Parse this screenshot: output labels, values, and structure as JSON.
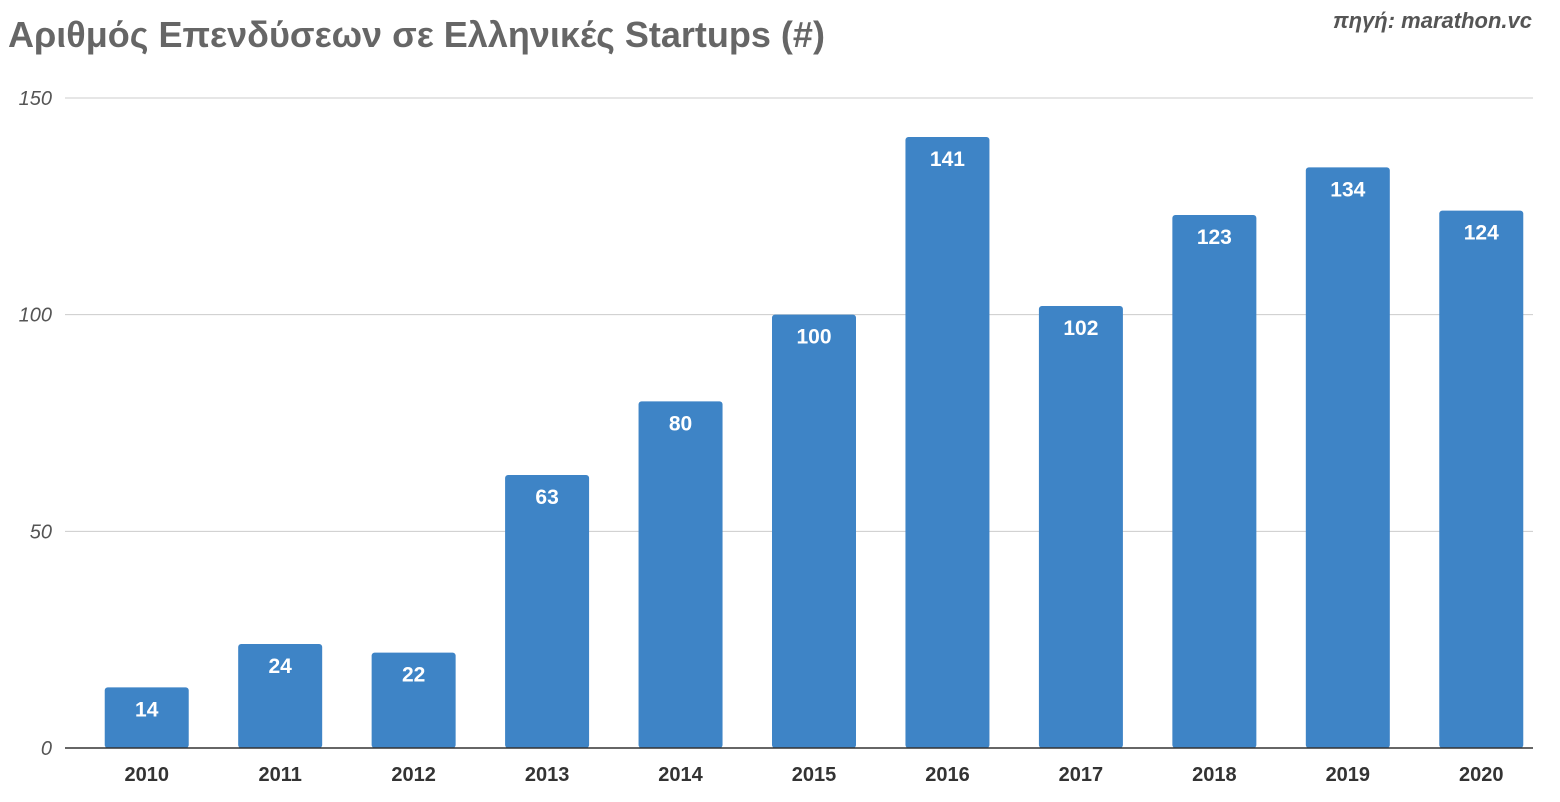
{
  "chart_data": {
    "type": "bar",
    "title": "Αριθμός Επενδύσεων σε Ελληνικές Startups (#)",
    "source": "πηγή: marathon.vc",
    "categories": [
      "2010",
      "2011",
      "2012",
      "2013",
      "2014",
      "2015",
      "2016",
      "2017",
      "2018",
      "2019",
      "2020"
    ],
    "values": [
      14,
      24,
      22,
      63,
      80,
      100,
      141,
      102,
      123,
      134,
      124
    ],
    "ylim": [
      0,
      150
    ],
    "yticks": [
      0,
      50,
      100,
      150
    ],
    "grid": true,
    "bar_color": "#3e84c6",
    "data_labels": true,
    "legend": "none"
  }
}
